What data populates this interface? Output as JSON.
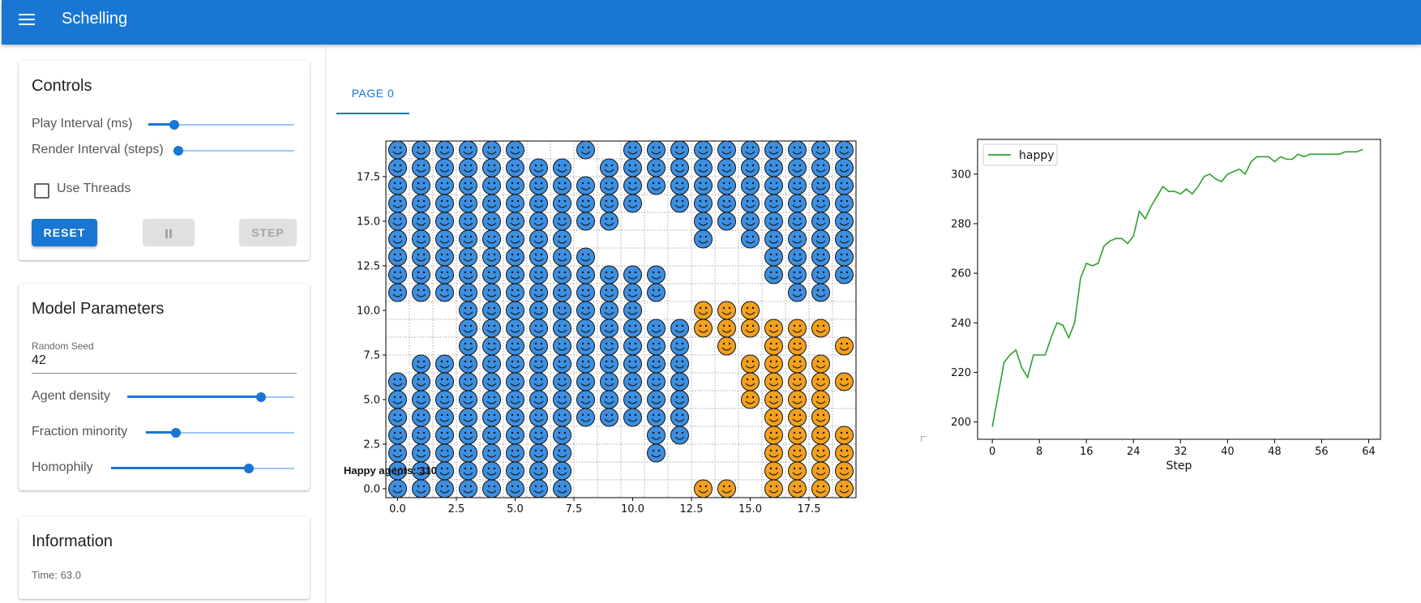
{
  "app": {
    "title": "Schelling"
  },
  "controls": {
    "title": "Controls",
    "play_interval_label": "Play Interval (ms)",
    "play_interval_value": 0.18,
    "render_interval_label": "Render Interval (steps)",
    "render_interval_value": 0.0,
    "use_threads_label": "Use Threads",
    "use_threads_checked": false,
    "reset_label": "RESET",
    "pause_icon": "pause-icon",
    "step_label": "STEP"
  },
  "model_params": {
    "title": "Model Parameters",
    "seed_label": "Random Seed",
    "seed_value": "42",
    "agent_density_label": "Agent density",
    "agent_density_value": 0.8,
    "fraction_minority_label": "Fraction minority",
    "fraction_minority_value": 0.2,
    "homophily_label": "Homophily",
    "homophily_value": 0.75
  },
  "information": {
    "title": "Information",
    "time_text": "Time: 63.0"
  },
  "tabs": [
    {
      "label": "PAGE 0"
    }
  ],
  "grid": {
    "happy_text": "Happy agents: 310",
    "width": 20,
    "height": 20,
    "xticks": [
      "0.0",
      "2.5",
      "5.0",
      "7.5",
      "10.0",
      "12.5",
      "15.0",
      "17.5"
    ],
    "yticks": [
      "0.0",
      "2.5",
      "5.0",
      "7.5",
      "10.0",
      "12.5",
      "15.0",
      "17.5"
    ],
    "colors": {
      "majority": "#3d8fe0",
      "minority": "#f2a01e"
    },
    "rows_top_to_bottom": [
      "BBBBBB..B.BBBBBBBBBB",
      "BBBBBBBB.BBBBBBBBBBB",
      "BBBBBBBBBBBBBBBBBBBB",
      "BBBBBBBBBBB.BBBBBBBB",
      "BBBBBBBBBB...BBBBBBB",
      "BBBBBBBB.....B.BBBBB",
      "BBBBBBBBB.......BBBB",
      "BBBBBBBBBBBB....BBBB",
      "BBBBBBBBBBBB.....BB.",
      "...BBBBBBBB..OOO....",
      "...BBBBBBBBBBOOOOOO.",
      "...BBBBBBBBBB.O.OO.O",
      ".BBBBBBBBBBBB..OOOO.",
      "BBBBBBBBBBBBB..OOOOO",
      "BBBBBBBBBBBBB..OOOO.",
      "BBBBBBBBBBBBB...OOO.",
      "BBBBBBBB...BB...OOOO",
      "BBBBBBBB...B....OOOO",
      "BBBBBBBB........OOOO",
      "BBBBBBBB.....OO.OOOO"
    ]
  },
  "chart_data": {
    "type": "line",
    "title": "",
    "xlabel": "Step",
    "ylabel": "",
    "xlim": [
      -2.5,
      66
    ],
    "ylim": [
      193,
      314
    ],
    "xticks": [
      0,
      8,
      16,
      24,
      32,
      40,
      48,
      56,
      64
    ],
    "yticks": [
      200,
      220,
      240,
      260,
      280,
      300
    ],
    "legend_position": "top-left",
    "series": [
      {
        "name": "happy",
        "color": "#2ca02c",
        "x": [
          0,
          1,
          2,
          3,
          4,
          5,
          6,
          7,
          8,
          9,
          10,
          11,
          12,
          13,
          14,
          15,
          16,
          17,
          18,
          19,
          20,
          21,
          22,
          23,
          24,
          25,
          26,
          27,
          28,
          29,
          30,
          31,
          32,
          33,
          34,
          35,
          36,
          37,
          38,
          39,
          40,
          41,
          42,
          43,
          44,
          45,
          46,
          47,
          48,
          49,
          50,
          51,
          52,
          53,
          54,
          55,
          56,
          57,
          58,
          59,
          60,
          61,
          62,
          63
        ],
        "values": [
          198,
          211,
          224,
          227,
          229,
          222,
          218,
          227,
          227,
          227,
          234,
          240,
          239,
          234,
          240,
          258,
          264,
          263,
          264,
          271,
          273,
          274,
          274,
          272,
          275,
          285,
          282,
          287,
          291,
          295,
          293,
          293,
          292,
          294,
          292,
          295,
          299,
          300,
          298,
          297,
          300,
          301,
          302,
          300,
          305,
          307,
          307,
          307,
          305,
          307,
          306,
          306,
          308,
          307,
          308,
          308,
          308,
          308,
          308,
          308,
          309,
          309,
          309,
          310
        ]
      }
    ]
  }
}
